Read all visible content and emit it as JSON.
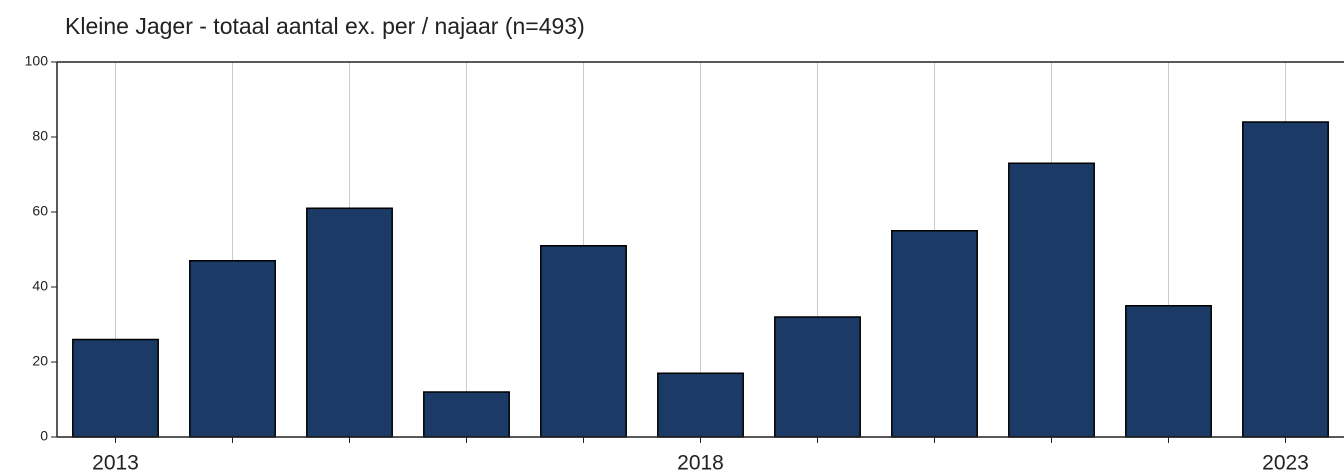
{
  "chart_data": {
    "type": "bar",
    "title": "Kleine Jager - totaal aantal ex. per / najaar (n=493)",
    "x": [
      2013,
      2014,
      2015,
      2016,
      2017,
      2018,
      2019,
      2020,
      2021,
      2022,
      2023
    ],
    "values": [
      26,
      47,
      61,
      12,
      51,
      17,
      32,
      55,
      73,
      35,
      84
    ],
    "color": "#1b3a66",
    "xlim": [
      2012.5,
      2023.5
    ],
    "xticks": [
      2013,
      2018,
      2023
    ],
    "ylim": [
      0,
      100
    ],
    "yticks": [
      0,
      20,
      40,
      60,
      80,
      100
    ],
    "grid": true
  }
}
